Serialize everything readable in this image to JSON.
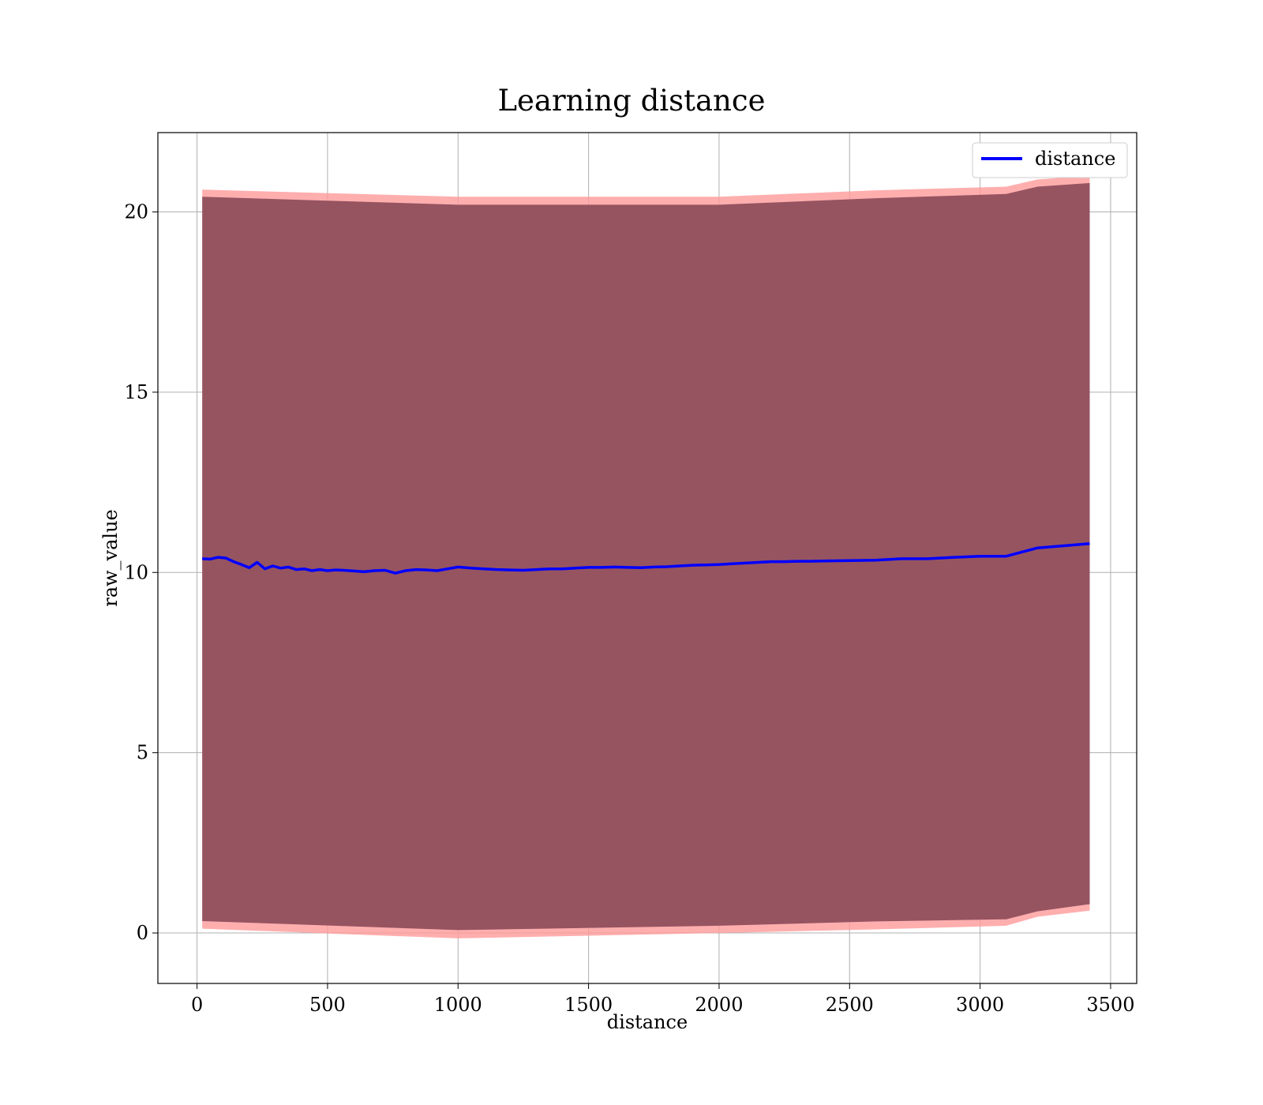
{
  "chart_data": {
    "type": "line",
    "title": "Learning distance",
    "xlabel": "distance",
    "ylabel": "raw_value",
    "xlim": [
      -150,
      3600
    ],
    "ylim": [
      -1.4,
      22.2
    ],
    "xticks": [
      0,
      500,
      1000,
      1500,
      2000,
      2500,
      3000,
      3500
    ],
    "yticks": [
      0,
      5,
      10,
      15,
      20
    ],
    "grid": true,
    "legend_position": "top-right",
    "colors": {
      "line": "#0000ff",
      "band_outer": "#ff9a9a",
      "band_inner": "#8b4a59",
      "grid": "#b0b0b0"
    },
    "series": [
      {
        "name": "distance",
        "type": "line",
        "x": [
          20,
          50,
          80,
          110,
          140,
          170,
          200,
          230,
          260,
          290,
          320,
          350,
          380,
          410,
          440,
          470,
          500,
          530,
          560,
          600,
          640,
          680,
          720,
          760,
          800,
          840,
          880,
          920,
          960,
          1000,
          1050,
          1100,
          1150,
          1200,
          1250,
          1300,
          1350,
          1400,
          1450,
          1500,
          1550,
          1600,
          1650,
          1700,
          1750,
          1800,
          1850,
          1900,
          1950,
          2000,
          2050,
          2100,
          2150,
          2200,
          2250,
          2300,
          2350,
          2400,
          2500,
          2600,
          2700,
          2800,
          2900,
          3000,
          3100,
          3220,
          3420
        ],
        "y": [
          10.38,
          10.37,
          10.42,
          10.4,
          10.3,
          10.22,
          10.13,
          10.28,
          10.1,
          10.18,
          10.12,
          10.15,
          10.08,
          10.1,
          10.05,
          10.08,
          10.05,
          10.07,
          10.06,
          10.04,
          10.02,
          10.05,
          10.06,
          9.98,
          10.05,
          10.08,
          10.07,
          10.05,
          10.1,
          10.15,
          10.12,
          10.1,
          10.08,
          10.07,
          10.06,
          10.08,
          10.1,
          10.1,
          10.12,
          10.14,
          10.14,
          10.15,
          10.14,
          10.13,
          10.15,
          10.16,
          10.18,
          10.2,
          10.21,
          10.22,
          10.24,
          10.26,
          10.28,
          10.3,
          10.3,
          10.31,
          10.31,
          10.32,
          10.33,
          10.34,
          10.38,
          10.38,
          10.42,
          10.45,
          10.45,
          10.68,
          10.8
        ]
      },
      {
        "name": "band-outer",
        "type": "area",
        "x": [
          20,
          1000,
          2000,
          2600,
          3100,
          3220,
          3420
        ],
        "upper": [
          20.62,
          20.42,
          20.42,
          20.6,
          20.7,
          20.9,
          21.0
        ],
        "lower": [
          0.12,
          -0.15,
          0.0,
          0.1,
          0.2,
          0.45,
          0.62
        ]
      },
      {
        "name": "band-inner",
        "type": "area",
        "x": [
          20,
          1000,
          2000,
          2600,
          3100,
          3220,
          3420
        ],
        "upper": [
          20.42,
          20.2,
          20.2,
          20.38,
          20.5,
          20.7,
          20.8
        ],
        "lower": [
          0.33,
          0.08,
          0.2,
          0.32,
          0.38,
          0.6,
          0.8
        ]
      }
    ]
  }
}
